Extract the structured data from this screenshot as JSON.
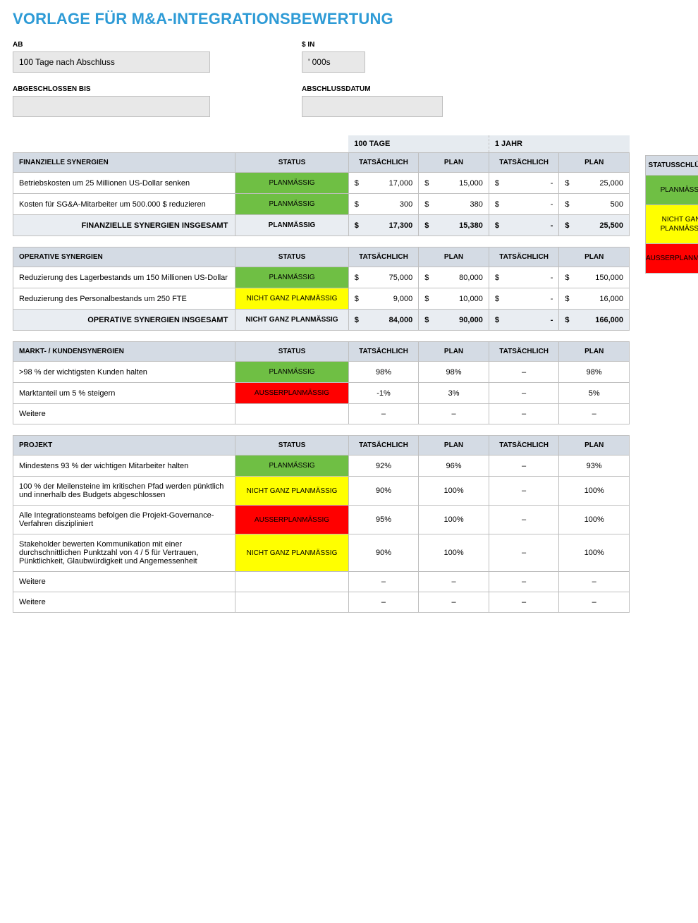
{
  "title": "VORLAGE FÜR M&A-INTEGRATIONSBEWERTUNG",
  "meta": {
    "ab_label": "AB",
    "ab_value": "100 Tage nach Abschluss",
    "sin_label": "$ IN",
    "sin_value": "' 000s",
    "closed_label": "ABGESCHLOSSEN BIS",
    "closed_value": "",
    "closedate_label": "ABSCHLUSSDATUM",
    "closedate_value": ""
  },
  "periods": {
    "p100": "100 TAGE",
    "p1yr": "1 JAHR"
  },
  "columns": {
    "status": "STATUS",
    "tatsaechlich": "TATSÄCHLICH",
    "plan": "PLAN"
  },
  "status_labels": {
    "on": "PLANMÄSSIG",
    "mid": "NICHT GANZ PLANMÄSSIG",
    "off": "AUSSERPLANMÄSSIG"
  },
  "status_colors": {
    "on": "#6fbf44",
    "mid": "#ffff00",
    "off": "#ff0000"
  },
  "legend_title": "STATUSSCHLÜSSEL",
  "sections": {
    "financial": {
      "heading": "FINANZIELLE SYNERGIEN",
      "total_label": "FINANZIELLE SYNERGIEN INSGESAMT",
      "rows": [
        {
          "desc": "Betriebskosten um 25 Millionen US-Dollar senken",
          "status": "on",
          "p100_act": "17,000",
          "p100_plan": "15,000",
          "p1_act": "-",
          "p1_plan": "25,000",
          "style": "currency"
        },
        {
          "desc": "Kosten für SG&A-Mitarbeiter um 500.000 $ reduzieren",
          "status": "on",
          "p100_act": "300",
          "p100_plan": "380",
          "p1_act": "-",
          "p1_plan": "500",
          "style": "currency"
        }
      ],
      "total": {
        "status": "on",
        "p100_act": "17,300",
        "p100_plan": "15,380",
        "p1_act": "-",
        "p1_plan": "25,500",
        "style": "currency"
      }
    },
    "operational": {
      "heading": "OPERATIVE SYNERGIEN",
      "total_label": "OPERATIVE SYNERGIEN INSGESAMT",
      "rows": [
        {
          "desc": "Reduzierung des Lagerbestands um 150 Millionen US-Dollar",
          "status": "on",
          "p100_act": "75,000",
          "p100_plan": "80,000",
          "p1_act": "-",
          "p1_plan": "150,000",
          "style": "currency"
        },
        {
          "desc": "Reduzierung des Personalbestands um 250 FTE",
          "status": "mid",
          "p100_act": "9,000",
          "p100_plan": "10,000",
          "p1_act": "-",
          "p1_plan": "16,000",
          "style": "currency"
        }
      ],
      "total": {
        "status": "mid",
        "p100_act": "84,000",
        "p100_plan": "90,000",
        "p1_act": "-",
        "p1_plan": "166,000",
        "style": "currency"
      }
    },
    "market": {
      "heading": "MARKT- / KUNDENSYNERGIEN",
      "rows": [
        {
          "desc": ">98 % der wichtigsten Kunden halten",
          "status": "on",
          "p100_act": "98%",
          "p100_plan": "98%",
          "p1_act": "–",
          "p1_plan": "98%",
          "style": "percent"
        },
        {
          "desc": "Marktanteil um 5 % steigern",
          "status": "off",
          "p100_act": "-1%",
          "p100_plan": "3%",
          "p1_act": "–",
          "p1_plan": "5%",
          "style": "percent"
        },
        {
          "desc": "Weitere",
          "status": "",
          "p100_act": "–",
          "p100_plan": "–",
          "p1_act": "–",
          "p1_plan": "–",
          "style": "dash"
        }
      ]
    },
    "project": {
      "heading": "PROJEKT",
      "rows": [
        {
          "desc": "Mindestens 93 % der wichtigen Mitarbeiter halten",
          "status": "on",
          "p100_act": "92%",
          "p100_plan": "96%",
          "p1_act": "–",
          "p1_plan": "93%",
          "style": "percent"
        },
        {
          "desc": "100 % der Meilensteine im kritischen Pfad werden pünktlich und innerhalb des Budgets abgeschlossen",
          "status": "mid",
          "p100_act": "90%",
          "p100_plan": "100%",
          "p1_act": "–",
          "p1_plan": "100%",
          "style": "percent"
        },
        {
          "desc": "Alle Integrationsteams befolgen die Projekt-Governance-Verfahren diszipliniert",
          "status": "off",
          "p100_act": "95%",
          "p100_plan": "100%",
          "p1_act": "–",
          "p1_plan": "100%",
          "style": "percent"
        },
        {
          "desc": "Stakeholder bewerten Kommunikation mit einer durchschnittlichen Punktzahl von 4 / 5 für Vertrauen, Pünktlichkeit, Glaubwürdigkeit und Angemessenheit",
          "status": "mid",
          "p100_act": "90%",
          "p100_plan": "100%",
          "p1_act": "–",
          "p1_plan": "100%",
          "style": "percent"
        },
        {
          "desc": "Weitere",
          "status": "",
          "p100_act": "–",
          "p100_plan": "–",
          "p1_act": "–",
          "p1_plan": "–",
          "style": "dash"
        },
        {
          "desc": "Weitere",
          "status": "",
          "p100_act": "–",
          "p100_plan": "–",
          "p1_act": "–",
          "p1_plan": "–",
          "style": "dash"
        }
      ]
    }
  }
}
